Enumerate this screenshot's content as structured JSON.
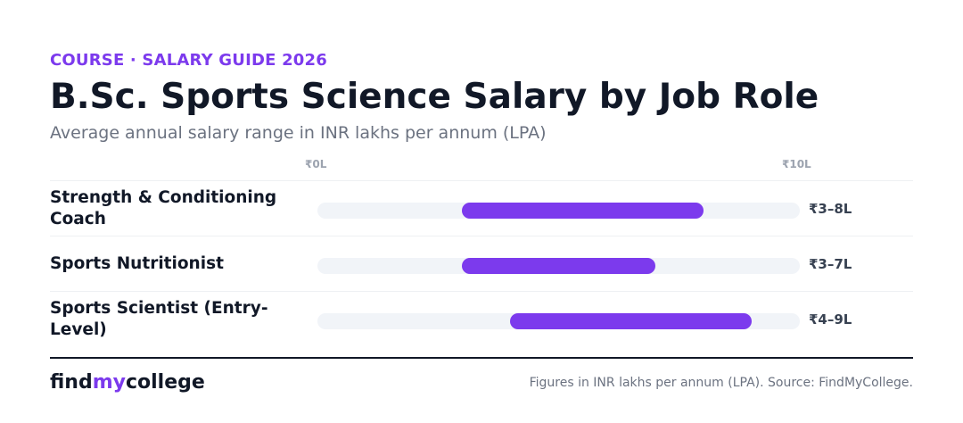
{
  "header": {
    "eyebrow": "COURSE · SALARY GUIDE 2026",
    "title": "B.Sc. Sports Science Salary by Job Role",
    "subtitle": "Average annual salary range in INR lakhs per annum (LPA)"
  },
  "colors": {
    "accent": "#7c3aed",
    "track": "#f1f4f8",
    "text": "#111827",
    "muted": "#6b7280"
  },
  "chart_data": {
    "type": "bar",
    "orientation": "horizontal-range",
    "xlim": [
      0,
      10
    ],
    "ticks": [
      "₹0L",
      "₹10L"
    ],
    "categories": [
      "Strength & Conditioning Coach",
      "Sports Nutritionist",
      "Sports Scientist (Entry-Level)"
    ],
    "ranges": [
      {
        "min": 3,
        "max": 8,
        "label": "₹3–8L"
      },
      {
        "min": 3,
        "max": 7,
        "label": "₹3–7L"
      },
      {
        "min": 4,
        "max": 9,
        "label": "₹4–9L"
      }
    ],
    "grid": false
  },
  "footer": {
    "brand_find": "find",
    "brand_my": "my",
    "brand_college": "college",
    "note": "Figures in INR lakhs per annum (LPA). Source: FindMyCollege."
  }
}
